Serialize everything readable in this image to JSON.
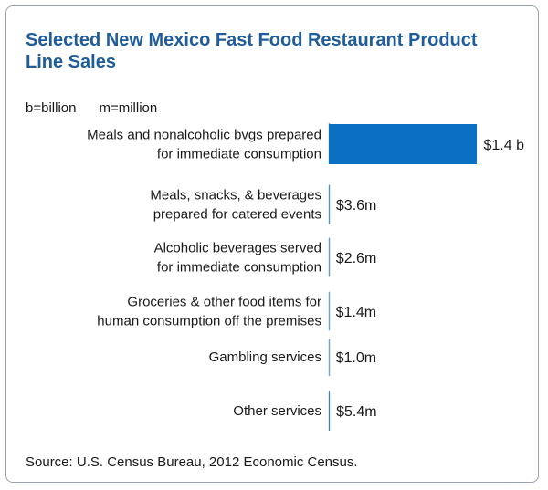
{
  "chart_data": {
    "type": "bar",
    "orientation": "horizontal",
    "title": "Selected New Mexico Fast Food Restaurant Product Line Sales",
    "note": "b=billion      m=million",
    "categories": [
      [
        "Meals and nonalcoholic bvgs prepared",
        "for immediate consumption"
      ],
      [
        "Meals, snacks, & beverages",
        "prepared for catered events"
      ],
      [
        "Alcoholic beverages served",
        "for immediate consumption"
      ],
      [
        "Groceries & other food items for",
        "human consumption off the premises"
      ],
      [
        "Gambling services"
      ],
      [
        "Other services"
      ]
    ],
    "values": [
      1400,
      3.6,
      2.6,
      1.4,
      1.0,
      5.4
    ],
    "value_unit": "million USD",
    "value_labels": [
      "$1.4 b",
      "$3.6m",
      "$2.6m",
      "$1.4m",
      "$1.0m",
      "$5.4m"
    ],
    "xlim": [
      0,
      1400
    ],
    "bar_color": "#0a70c2",
    "source": "Source: U.S. Census Bureau, 2012 Economic Census."
  },
  "colors": {
    "title": "#1f5c9b",
    "bar": "#0a70c2",
    "axis": "#7aaed8",
    "border": "#9aa3ad"
  }
}
